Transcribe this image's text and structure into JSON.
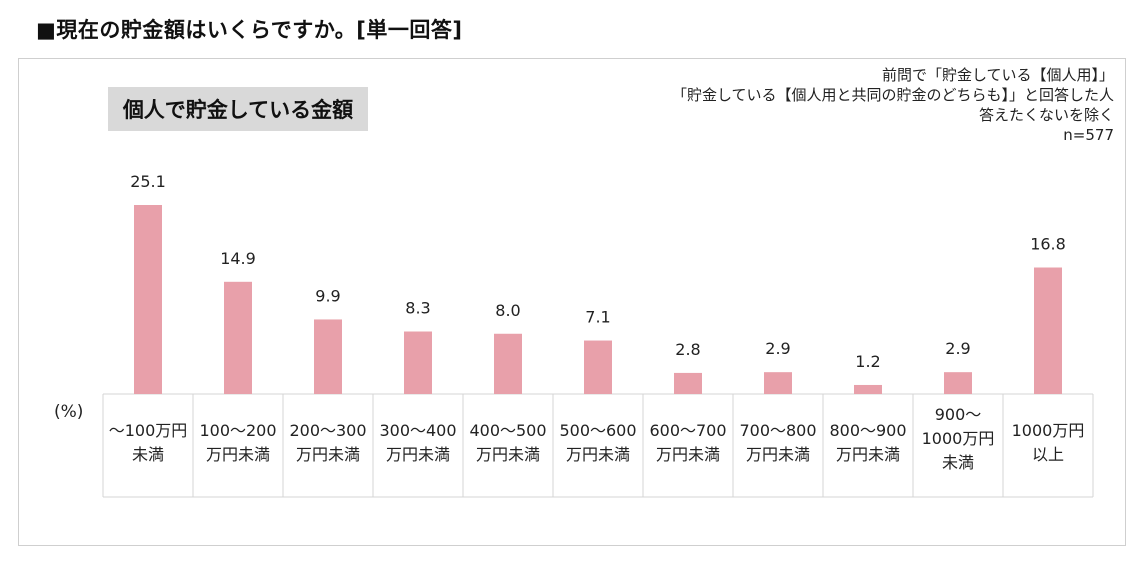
{
  "page_title": "■現在の貯金額はいくらですか。[単一回答]",
  "chart_data": {
    "type": "bar",
    "title": "個人で貯金している金額",
    "notes": [
      "前問で「貯金している【個人用】」",
      "「貯金している【個人用と共同の貯金のどちらも】」と回答した人",
      "答えたくないを除く",
      "n=577"
    ],
    "unit_label": "(%)",
    "categories": [
      [
        "～100万円",
        "未満"
      ],
      [
        "100～200",
        "万円未満"
      ],
      [
        "200～300",
        "万円未満"
      ],
      [
        "300～400",
        "万円未満"
      ],
      [
        "400～500",
        "万円未満"
      ],
      [
        "500～600",
        "万円未満"
      ],
      [
        "600～700",
        "万円未満"
      ],
      [
        "700～800",
        "万円未満"
      ],
      [
        "800～900",
        "万円未満"
      ],
      [
        "900～",
        "1000万円",
        "未満"
      ],
      [
        "1000万円",
        "以上"
      ]
    ],
    "values": [
      25.1,
      14.9,
      9.9,
      8.3,
      8.0,
      7.1,
      2.8,
      2.9,
      1.2,
      2.9,
      16.8
    ],
    "value_labels": [
      "25.1",
      "14.9",
      "9.9",
      "8.3",
      "8.0",
      "7.1",
      "2.8",
      "2.9",
      "1.2",
      "2.9",
      "16.8"
    ],
    "bar_color": "#e8a0aa",
    "grid_color": "#d4d4d4",
    "grid": false
  }
}
